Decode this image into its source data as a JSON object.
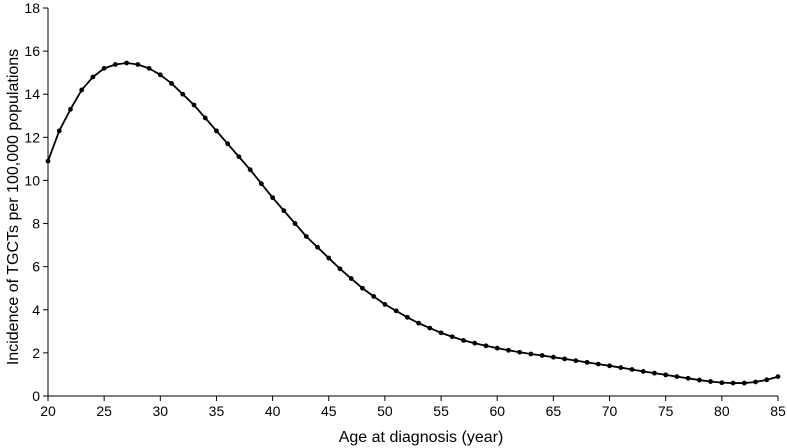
{
  "chart_data": {
    "type": "line",
    "title": "",
    "xlabel": "Age at diagnosis (year)",
    "ylabel": "Incidence of TGCTs per 100,000 populations",
    "xlim": [
      20,
      85
    ],
    "ylim": [
      0,
      18
    ],
    "xticks": [
      20,
      25,
      30,
      35,
      40,
      45,
      50,
      55,
      60,
      65,
      70,
      75,
      80,
      85
    ],
    "yticks": [
      0,
      2,
      4,
      6,
      8,
      10,
      12,
      14,
      16,
      18
    ],
    "grid": false,
    "legend": "none",
    "series": [
      {
        "color": "#000000",
        "marker": "circle",
        "x": [
          20,
          21,
          22,
          23,
          24,
          25,
          26,
          27,
          28,
          29,
          30,
          31,
          32,
          33,
          34,
          35,
          36,
          37,
          38,
          39,
          40,
          41,
          42,
          43,
          44,
          45,
          46,
          47,
          48,
          49,
          50,
          51,
          52,
          53,
          54,
          55,
          56,
          57,
          58,
          59,
          60,
          61,
          62,
          63,
          64,
          65,
          66,
          67,
          68,
          69,
          70,
          71,
          72,
          73,
          74,
          75,
          76,
          77,
          78,
          79,
          80,
          81,
          82,
          83,
          84,
          85
        ],
        "values": [
          10.9,
          12.3,
          13.3,
          14.2,
          14.8,
          15.2,
          15.38,
          15.45,
          15.38,
          15.2,
          14.9,
          14.5,
          14.0,
          13.5,
          12.9,
          12.3,
          11.7,
          11.1,
          10.5,
          9.85,
          9.2,
          8.6,
          8.0,
          7.4,
          6.9,
          6.4,
          5.9,
          5.45,
          5.0,
          4.62,
          4.25,
          3.95,
          3.65,
          3.38,
          3.15,
          2.93,
          2.75,
          2.58,
          2.45,
          2.33,
          2.22,
          2.12,
          2.03,
          1.95,
          1.88,
          1.8,
          1.72,
          1.64,
          1.56,
          1.48,
          1.4,
          1.32,
          1.23,
          1.14,
          1.06,
          0.98,
          0.9,
          0.82,
          0.74,
          0.67,
          0.62,
          0.6,
          0.6,
          0.65,
          0.75,
          0.9
        ]
      }
    ]
  }
}
